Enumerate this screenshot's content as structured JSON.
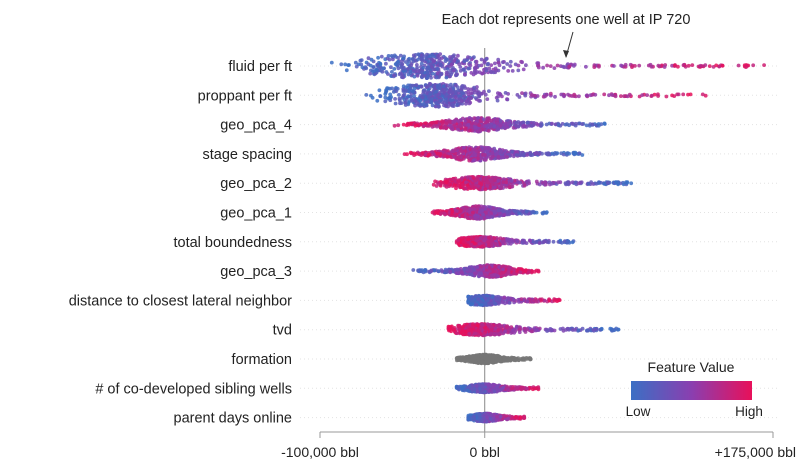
{
  "chart_data": {
    "type": "scatter",
    "subtype": "shap-beeswarm",
    "annotation": "Each dot represents one well at IP 720",
    "xlabel": "",
    "xlim": [
      -100000,
      175000
    ],
    "x_ticks": [
      {
        "value": -100000,
        "label": "-100,000 bbl"
      },
      {
        "value": 0,
        "label": "0 bbl"
      },
      {
        "value": 175000,
        "label": "+175,000 bbl"
      }
    ],
    "legend": {
      "title": "Feature Value",
      "low_label": "Low",
      "high_label": "High",
      "low_color": "#3b6fc4",
      "high_color": "#e8105a",
      "placement": "bottom-right"
    },
    "colors": {
      "low": "#3b6fc4",
      "mid": "#8a3fb0",
      "high": "#e8105a",
      "neutral": "#777777",
      "zero_line": "#888888",
      "row_grid": "#e3e3e3"
    },
    "features": [
      {
        "name": "fluid per ft",
        "min": -95000,
        "max": 172000,
        "mode": -35000,
        "spread": 0.85,
        "color_dir": 1
      },
      {
        "name": "proppant per ft",
        "min": -72000,
        "max": 135000,
        "mode": -30000,
        "spread": 0.8,
        "color_dir": 1
      },
      {
        "name": "geo_pca_4",
        "min": -58000,
        "max": 75000,
        "mode": -4000,
        "spread": 0.45,
        "color_dir": -1
      },
      {
        "name": "stage spacing",
        "min": -50000,
        "max": 60000,
        "mode": -6000,
        "spread": 0.45,
        "color_dir": -1
      },
      {
        "name": "geo_pca_2",
        "min": -33000,
        "max": 90000,
        "mode": -4000,
        "spread": 0.4,
        "color_dir": -1
      },
      {
        "name": "geo_pca_1",
        "min": -32000,
        "max": 40000,
        "mode": -4000,
        "spread": 0.4,
        "color_dir": -1
      },
      {
        "name": "total boundedness",
        "min": -17000,
        "max": 54000,
        "mode": -3000,
        "spread": 0.3,
        "color_dir": -1
      },
      {
        "name": "geo_pca_3",
        "min": -44000,
        "max": 33000,
        "mode": 3000,
        "spread": 0.38,
        "color_dir": 1
      },
      {
        "name": "distance to closest lateral neighbor",
        "min": -10000,
        "max": 47000,
        "mode": -1000,
        "spread": 0.28,
        "color_dir": 1
      },
      {
        "name": "tvd",
        "min": -22000,
        "max": 82000,
        "mode": -2000,
        "spread": 0.35,
        "color_dir": -1
      },
      {
        "name": "formation",
        "min": -17000,
        "max": 28000,
        "mode": 0,
        "spread": 0.25,
        "color_dir": 0
      },
      {
        "name": "# of co-developed sibling wells",
        "min": -17000,
        "max": 33000,
        "mode": 0,
        "spread": 0.24,
        "color_dir": 1
      },
      {
        "name": "parent days online",
        "min": -10000,
        "max": 24000,
        "mode": 0,
        "spread": 0.22,
        "color_dir": 1
      }
    ]
  }
}
